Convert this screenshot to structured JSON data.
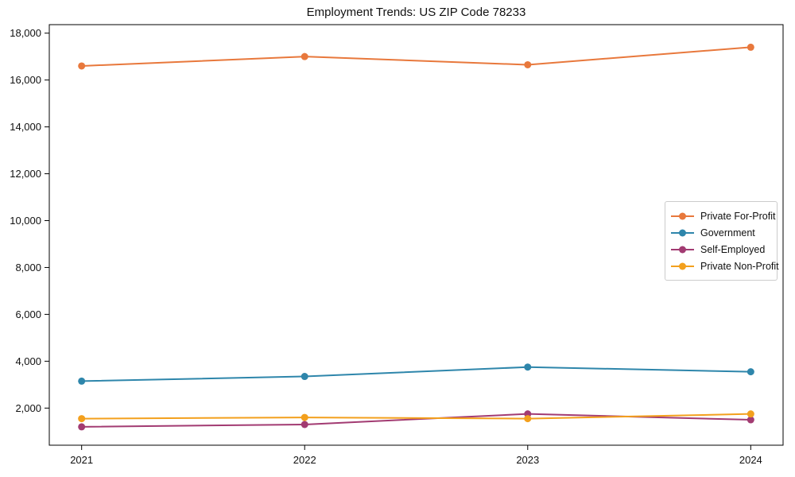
{
  "figure": {
    "background": "#ffffff",
    "frame_color": "#000000",
    "tick_color": "#000000",
    "text_color": "#111111",
    "legend_border_color": "#cccccc",
    "grid": false
  },
  "chart_data": {
    "type": "line",
    "title": "Employment Trends: US ZIP Code 78233",
    "xlabel": "",
    "ylabel": "",
    "x": [
      2021,
      2022,
      2023,
      2024
    ],
    "x_tick_labels": [
      "2021",
      "2022",
      "2023",
      "2024"
    ],
    "xlim": [
      2020.855,
      2024.145
    ],
    "ylim": [
      416,
      18363
    ],
    "y_ticks": [
      2000,
      4000,
      6000,
      8000,
      10000,
      12000,
      14000,
      16000,
      18000
    ],
    "y_tick_labels": [
      "2,000",
      "4,000",
      "6,000",
      "8,000",
      "10,000",
      "12,000",
      "14,000",
      "16,000",
      "18,000"
    ],
    "legend_position": "center right",
    "series": [
      {
        "name": "Private For-Profit",
        "color": "#E8783C",
        "values": [
          16600,
          17000,
          16650,
          17400
        ]
      },
      {
        "name": "Government",
        "color": "#2E86AB",
        "values": [
          3150,
          3350,
          3750,
          3550
        ]
      },
      {
        "name": "Self-Employed",
        "color": "#A23B72",
        "values": [
          1200,
          1300,
          1750,
          1500
        ]
      },
      {
        "name": "Private Non-Profit",
        "color": "#F3A01D",
        "values": [
          1550,
          1600,
          1550,
          1750
        ]
      }
    ]
  }
}
